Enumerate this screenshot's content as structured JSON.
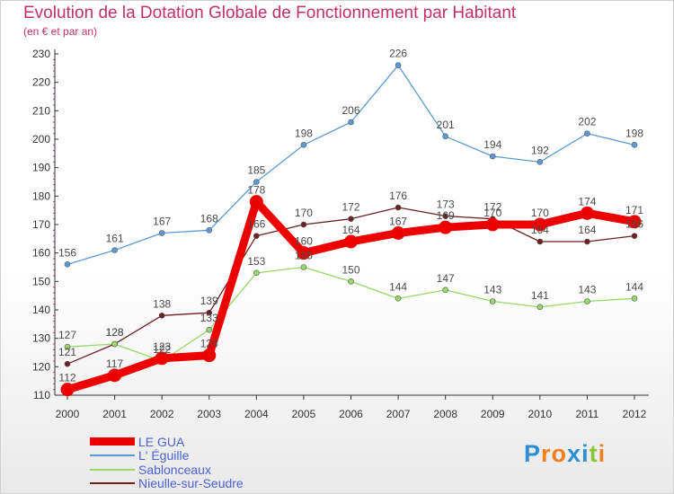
{
  "header": {
    "title": "Evolution de la Dotation Globale de Fonctionnement par Habitant",
    "subtitle": "(en € et par an)"
  },
  "logo": {
    "text": "Proxiti",
    "colors": [
      "#2a8fd6",
      "#f07f1c",
      "#f07f1c",
      "#2a8fd6",
      "#2a8fd6",
      "#8cc63f",
      "#f07f1c"
    ]
  },
  "chart_data": {
    "type": "line",
    "title": "Evolution de la Dotation Globale de Fonctionnement par Habitant",
    "subtitle": "(en € et par an)",
    "x": [
      2000,
      2001,
      2002,
      2003,
      2004,
      2005,
      2006,
      2007,
      2008,
      2009,
      2010,
      2011,
      2012
    ],
    "ylim": [
      110,
      230
    ],
    "yticks": [
      110,
      120,
      130,
      140,
      150,
      160,
      170,
      180,
      190,
      200,
      210,
      220,
      230
    ],
    "grid": false,
    "legend_position": "bottom-left",
    "series": [
      {
        "name": "LE GUA",
        "color": "#ee0000",
        "emphasis": true,
        "values": [
          112,
          117,
          123,
          124,
          178,
          160,
          164,
          167,
          169,
          170,
          170,
          174,
          171
        ]
      },
      {
        "name": "L' Éguille",
        "color": "#5b9bd5",
        "values": [
          156,
          161,
          167,
          168,
          185,
          198,
          206,
          226,
          201,
          194,
          192,
          202,
          198
        ]
      },
      {
        "name": "Sablonceaux",
        "color": "#98d86a",
        "values": [
          127,
          128,
          122,
          133,
          153,
          155,
          150,
          144,
          147,
          143,
          141,
          143,
          144
        ]
      },
      {
        "name": "Nieulle-sur-Seudre",
        "color": "#6e1f22",
        "values": [
          121,
          128,
          138,
          139,
          166,
          170,
          172,
          176,
          173,
          172,
          164,
          164,
          166
        ]
      }
    ]
  }
}
